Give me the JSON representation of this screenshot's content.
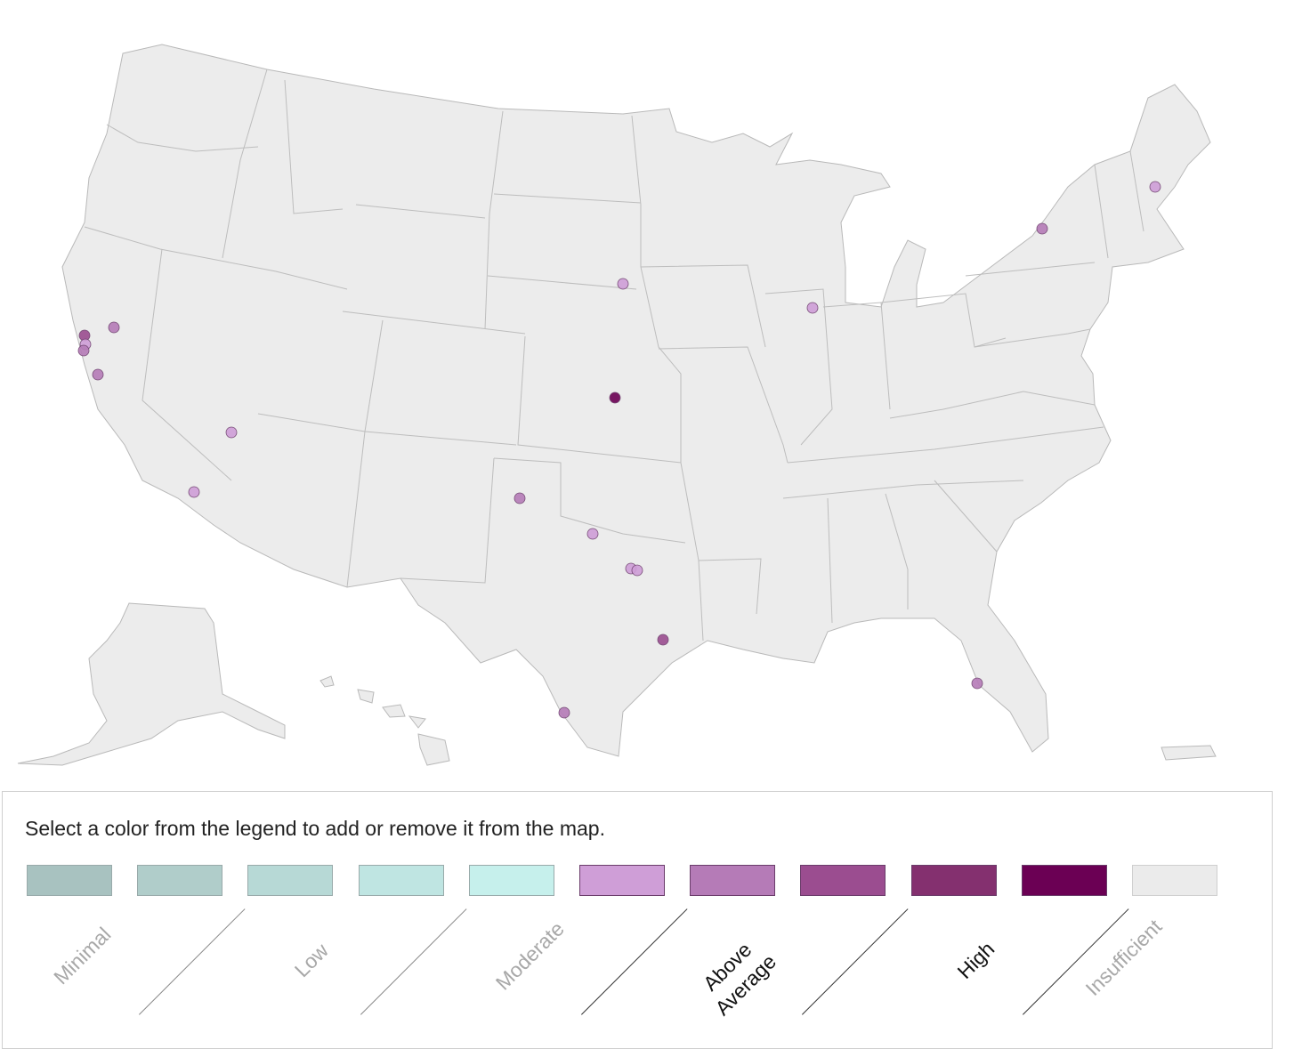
{
  "map": {
    "markers": [
      {
        "name": "marker-kansas",
        "color": "#6b0054"
      },
      {
        "name": "marker-sf-1",
        "color": "#9b4d90"
      },
      {
        "name": "marker-sf-2",
        "color": "#cf9ed7"
      },
      {
        "name": "marker-sf-3",
        "color": "#b57bb7"
      },
      {
        "name": "marker-sacramento",
        "color": "#b57bb7"
      },
      {
        "name": "marker-san-jose",
        "color": "#b57bb7"
      },
      {
        "name": "marker-las-vegas",
        "color": "#cf9ed7"
      },
      {
        "name": "marker-los-angeles",
        "color": "#cf9ed7"
      },
      {
        "name": "marker-sioux-falls",
        "color": "#cf9ed7"
      },
      {
        "name": "marker-chicago",
        "color": "#cf9ed7"
      },
      {
        "name": "marker-rochester",
        "color": "#b57bb7"
      },
      {
        "name": "marker-portland-me",
        "color": "#cf9ed7"
      },
      {
        "name": "marker-amarillo",
        "color": "#b57bb7"
      },
      {
        "name": "marker-wichita-falls",
        "color": "#cf9ed7"
      },
      {
        "name": "marker-dallas-1",
        "color": "#cf9ed7"
      },
      {
        "name": "marker-dallas-2",
        "color": "#cf9ed7"
      },
      {
        "name": "marker-houston",
        "color": "#9b4d90"
      },
      {
        "name": "marker-laredo",
        "color": "#b57bb7"
      },
      {
        "name": "marker-tampa",
        "color": "#b57bb7"
      }
    ]
  },
  "legend": {
    "instruction": "Select a color from the legend to add or remove it from the map.",
    "swatches": [
      {
        "name": "swatch-minimal-1",
        "color": "#a8c2c0"
      },
      {
        "name": "swatch-minimal-2",
        "color": "#b0cdca"
      },
      {
        "name": "swatch-low-1",
        "color": "#b7d9d6"
      },
      {
        "name": "swatch-low-2",
        "color": "#bfe5e2"
      },
      {
        "name": "swatch-moderate-1",
        "color": "#c6f0ec"
      },
      {
        "name": "swatch-moderate-2",
        "color": "#cf9ed7"
      },
      {
        "name": "swatch-above-average",
        "color": "#b57bb7"
      },
      {
        "name": "swatch-above-average-2",
        "color": "#9b4d90"
      },
      {
        "name": "swatch-high",
        "color": "#84306f"
      },
      {
        "name": "swatch-high-2",
        "color": "#6b0054"
      },
      {
        "name": "swatch-insufficient",
        "color": "#ebebeb"
      }
    ],
    "labels": {
      "minimal": "Minimal",
      "low": "Low",
      "moderate": "Moderate",
      "above_average_1": "Above",
      "above_average_2": "Average",
      "high": "High",
      "insufficient": "Insufficient"
    }
  }
}
